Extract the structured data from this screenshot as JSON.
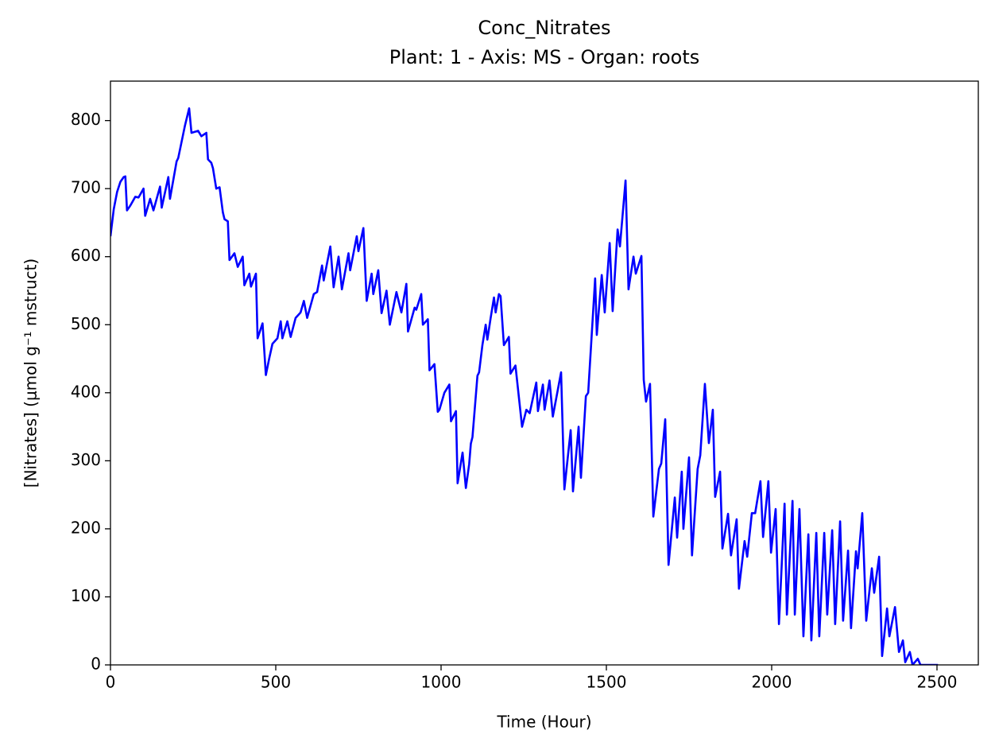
{
  "chart_data": {
    "type": "line",
    "title": "Conc_Nitrates",
    "subtitle": "Plant: 1 - Axis: MS - Organ: roots",
    "xlabel": "Time (Hour)",
    "ylabel": "[Nitrates] (μmol g⁻¹ mstruct)",
    "color": "#0000ff",
    "xlim": [
      0,
      2625
    ],
    "ylim": [
      0,
      858
    ],
    "xticks": [
      0,
      500,
      1000,
      1500,
      2000,
      2500
    ],
    "yticks": [
      0,
      100,
      200,
      300,
      400,
      500,
      600,
      700,
      800
    ],
    "x": [
      0,
      10,
      20,
      30,
      40,
      45,
      50,
      60,
      75,
      85,
      100,
      105,
      120,
      130,
      150,
      155,
      175,
      180,
      200,
      205,
      225,
      238,
      245,
      265,
      275,
      290,
      295,
      305,
      310,
      320,
      330,
      340,
      345,
      355,
      360,
      375,
      385,
      400,
      405,
      420,
      425,
      440,
      445,
      460,
      470,
      480,
      490,
      505,
      515,
      520,
      535,
      545,
      560,
      575,
      585,
      595,
      615,
      625,
      640,
      645,
      665,
      675,
      690,
      700,
      720,
      725,
      745,
      750,
      765,
      775,
      790,
      795,
      810,
      820,
      835,
      845,
      865,
      880,
      895,
      900,
      920,
      925,
      940,
      945,
      960,
      965,
      980,
      990,
      995,
      1010,
      1025,
      1030,
      1045,
      1050,
      1065,
      1075,
      1085,
      1090,
      1095,
      1100,
      1110,
      1115,
      1125,
      1135,
      1140,
      1150,
      1160,
      1165,
      1175,
      1180,
      1190,
      1205,
      1210,
      1225,
      1245,
      1258,
      1268,
      1288,
      1293,
      1308,
      1313,
      1328,
      1338,
      1363,
      1373,
      1392,
      1399,
      1416,
      1423,
      1438,
      1445,
      1466,
      1471,
      1486,
      1495,
      1510,
      1519,
      1534,
      1541,
      1558,
      1567,
      1582,
      1589,
      1606,
      1613,
      1620,
      1632,
      1642,
      1659,
      1666,
      1678,
      1688,
      1707,
      1714,
      1728,
      1733,
      1750,
      1759,
      1776,
      1784,
      1798,
      1810,
      1822,
      1829,
      1844,
      1851,
      1868,
      1877,
      1894,
      1901,
      1918,
      1926,
      1940,
      1950,
      1966,
      1974,
      1990,
      1998,
      2012,
      2022,
      2039,
      2046,
      2063,
      2070,
      2084,
      2096,
      2111,
      2120,
      2135,
      2144,
      2159,
      2168,
      2183,
      2192,
      2207,
      2216,
      2231,
      2240,
      2255,
      2260,
      2274,
      2286,
      2303,
      2310,
      2325,
      2334,
      2349,
      2356,
      2373,
      2385,
      2397,
      2404,
      2418,
      2426,
      2442,
      2450,
      2503
    ],
    "values": [
      630,
      670,
      695,
      710,
      717,
      718,
      668,
      675,
      688,
      687,
      700,
      660,
      685,
      668,
      703,
      672,
      717,
      685,
      740,
      745,
      792,
      818,
      782,
      785,
      777,
      782,
      743,
      738,
      730,
      700,
      702,
      665,
      655,
      652,
      595,
      605,
      585,
      600,
      558,
      575,
      556,
      575,
      480,
      502,
      426,
      450,
      472,
      480,
      505,
      480,
      505,
      482,
      510,
      518,
      535,
      510,
      545,
      548,
      587,
      565,
      615,
      555,
      600,
      552,
      605,
      580,
      630,
      608,
      642,
      535,
      575,
      545,
      580,
      517,
      550,
      500,
      548,
      518,
      560,
      490,
      525,
      522,
      545,
      500,
      508,
      433,
      442,
      372,
      375,
      400,
      412,
      358,
      373,
      267,
      312,
      260,
      295,
      325,
      335,
      365,
      425,
      430,
      470,
      500,
      478,
      510,
      540,
      518,
      545,
      542,
      470,
      482,
      428,
      440,
      350,
      375,
      370,
      415,
      373,
      412,
      375,
      418,
      365,
      430,
      258,
      345,
      255,
      350,
      275,
      395,
      400,
      568,
      485,
      573,
      518,
      620,
      520,
      640,
      615,
      712,
      552,
      600,
      575,
      601,
      419,
      387,
      413,
      218,
      288,
      296,
      361,
      147,
      246,
      187,
      284,
      200,
      305,
      161,
      288,
      308,
      413,
      326,
      375,
      247,
      284,
      171,
      222,
      161,
      214,
      112,
      182,
      159,
      223,
      223,
      270,
      188,
      270,
      165,
      229,
      60,
      237,
      74,
      241,
      74,
      229,
      42,
      192,
      36,
      194,
      42,
      194,
      74,
      198,
      60,
      211,
      65,
      168,
      54,
      167,
      142,
      223,
      65,
      142,
      106,
      159,
      13,
      83,
      42,
      85,
      19,
      36,
      4,
      19,
      0,
      9,
      0,
      0
    ]
  }
}
